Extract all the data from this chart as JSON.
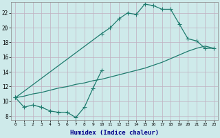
{
  "xlabel": "Humidex (Indice chaleur)",
  "background_color": "#ceeaea",
  "grid_color": "#c0afc0",
  "line_color": "#1e7b6e",
  "xlim": [
    -0.5,
    23.5
  ],
  "ylim": [
    7.5,
    23.5
  ],
  "xticks": [
    0,
    1,
    2,
    3,
    4,
    5,
    6,
    7,
    8,
    9,
    10,
    11,
    12,
    13,
    14,
    15,
    16,
    17,
    18,
    19,
    20,
    21,
    22,
    23
  ],
  "yticks": [
    8,
    10,
    12,
    14,
    16,
    18,
    20,
    22
  ],
  "s1_x": [
    0,
    1,
    2,
    3,
    4,
    5,
    6,
    7,
    8,
    9,
    10
  ],
  "s1_y": [
    10.5,
    9.2,
    9.5,
    9.2,
    8.7,
    8.5,
    8.5,
    7.8,
    9.2,
    11.8,
    14.2
  ],
  "s2_x": [
    0,
    10,
    11,
    12,
    13,
    14,
    15,
    16,
    17,
    18,
    19,
    20,
    21,
    22,
    23
  ],
  "s2_y": [
    10.5,
    19.2,
    20.0,
    21.2,
    22.0,
    21.8,
    23.2,
    23.0,
    22.5,
    22.5,
    20.5,
    18.5,
    18.2,
    17.2,
    17.2
  ],
  "s3_x": [
    0,
    1,
    2,
    3,
    4,
    5,
    6,
    7,
    8,
    9,
    10,
    11,
    12,
    13,
    14,
    15,
    16,
    17,
    18,
    19,
    20,
    21,
    22,
    23
  ],
  "s3_y": [
    10.5,
    10.7,
    11.0,
    11.2,
    11.5,
    11.8,
    12.0,
    12.3,
    12.5,
    12.8,
    13.0,
    13.3,
    13.6,
    13.9,
    14.2,
    14.5,
    14.9,
    15.3,
    15.8,
    16.3,
    16.8,
    17.2,
    17.5,
    17.2
  ]
}
